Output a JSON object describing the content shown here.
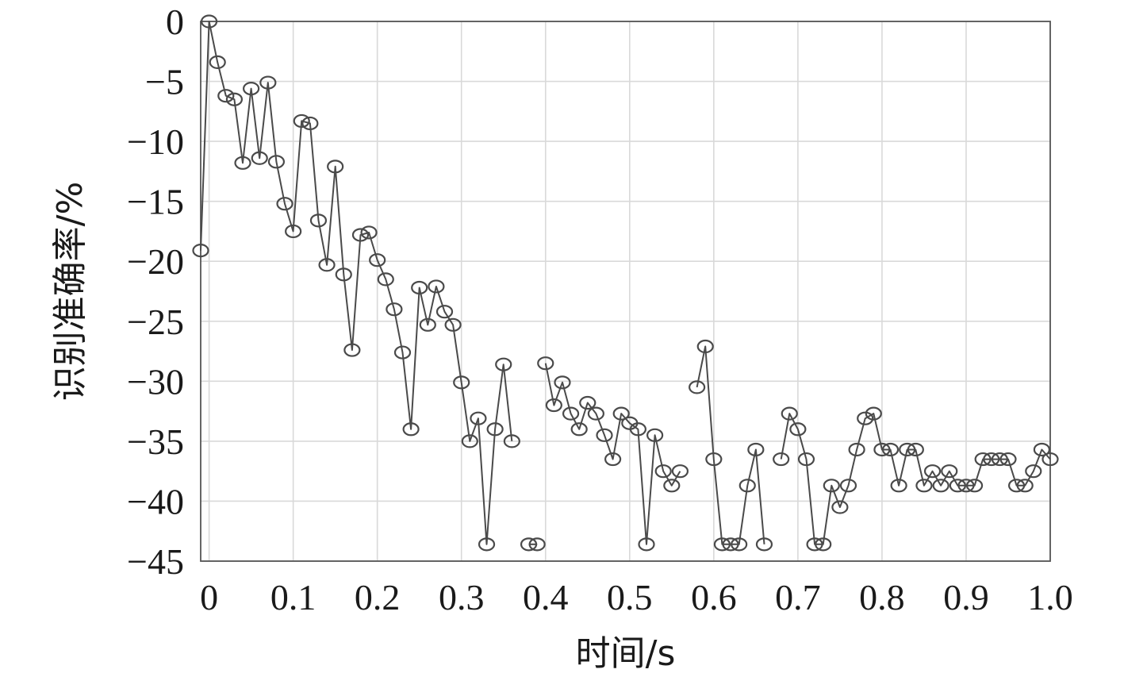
{
  "chart_data": {
    "type": "line",
    "title": "",
    "xlabel": "时间/s",
    "ylabel": "识别准确率/%",
    "xlim": [
      -0.01,
      1.0
    ],
    "ylim": [
      -45,
      0
    ],
    "grid": true,
    "x_ticks": [
      0,
      0.1,
      0.2,
      0.3,
      0.4,
      0.5,
      0.6,
      0.7,
      0.8,
      0.9,
      1.0
    ],
    "x_tick_labels": [
      "0",
      "0.1",
      "0.2",
      "0.3",
      "0.4",
      "0.5",
      "0.6",
      "0.7",
      "0.8",
      "0.9",
      "1.0"
    ],
    "y_ticks": [
      0,
      -5,
      -10,
      -15,
      -20,
      -25,
      -30,
      -35,
      -40,
      -45
    ],
    "y_tick_labels": [
      "0",
      "−5",
      "−10",
      "−15",
      "−20",
      "−25",
      "−30",
      "−35",
      "−40",
      "−45"
    ],
    "marker": "circle",
    "series": [
      {
        "name": "",
        "segments": [
          {
            "x": [
              -0.01,
              0.0,
              0.01,
              0.02,
              0.03,
              0.04,
              0.05,
              0.06,
              0.07,
              0.08,
              0.09,
              0.1,
              0.11,
              0.12,
              0.13,
              0.14,
              0.15,
              0.16,
              0.17,
              0.18,
              0.19,
              0.2,
              0.21,
              0.22,
              0.23,
              0.24,
              0.25,
              0.26,
              0.27,
              0.28,
              0.29,
              0.3,
              0.31,
              0.32,
              0.33,
              0.34,
              0.35,
              0.36
            ],
            "y": [
              -19.1,
              0.0,
              -3.4,
              -6.2,
              -6.5,
              -11.8,
              -5.6,
              -11.4,
              -5.1,
              -11.7,
              -15.2,
              -17.5,
              -8.3,
              -8.5,
              -16.6,
              -20.3,
              -12.1,
              -21.1,
              -27.4,
              -17.8,
              -17.6,
              -19.9,
              -21.5,
              -24.0,
              -27.6,
              -34.0,
              -22.2,
              -25.3,
              -22.1,
              -24.2,
              -25.3,
              -30.1,
              -35.0,
              -33.1,
              -43.6,
              -34.0,
              -28.6,
              -35.0
            ]
          },
          {
            "x": [
              0.38,
              0.39
            ],
            "y": [
              -43.6,
              -43.6
            ]
          },
          {
            "x": [
              0.4,
              0.41,
              0.42,
              0.43,
              0.44,
              0.45,
              0.46,
              0.47,
              0.48,
              0.49,
              0.5,
              0.51,
              0.52,
              0.53,
              0.54,
              0.55,
              0.56
            ],
            "y": [
              -28.5,
              -32.0,
              -30.1,
              -32.7,
              -34.0,
              -31.8,
              -32.7,
              -34.5,
              -36.5,
              -32.7,
              -33.5,
              -34.0,
              -43.6,
              -34.5,
              -37.5,
              -38.7,
              -37.5
            ]
          },
          {
            "x": [
              0.58,
              0.59,
              0.6,
              0.61,
              0.62,
              0.63,
              0.64,
              0.65,
              0.66
            ],
            "y": [
              -30.5,
              -27.1,
              -36.5,
              -43.6,
              -43.6,
              -43.6,
              -38.7,
              -35.7,
              -43.6
            ]
          },
          {
            "x": [
              0.68,
              0.69,
              0.7,
              0.71,
              0.72,
              0.73,
              0.74,
              0.75,
              0.76,
              0.77,
              0.78,
              0.79,
              0.8,
              0.81,
              0.82,
              0.83,
              0.84,
              0.85,
              0.86,
              0.87,
              0.88,
              0.89,
              0.9,
              0.91,
              0.92,
              0.93,
              0.94,
              0.95,
              0.96,
              0.97,
              0.98,
              0.99,
              1.0
            ],
            "y": [
              -36.5,
              -32.7,
              -34.0,
              -36.5,
              -43.6,
              -43.6,
              -38.7,
              -40.5,
              -38.7,
              -35.7,
              -33.1,
              -32.7,
              -35.7,
              -35.7,
              -38.7,
              -35.7,
              -35.7,
              -38.7,
              -37.5,
              -38.7,
              -37.5,
              -38.7,
              -38.7,
              -38.7,
              -36.5,
              -36.5,
              -36.5,
              -36.5,
              -38.7,
              -38.7,
              -37.5,
              -35.7,
              -36.5
            ]
          }
        ]
      }
    ]
  }
}
